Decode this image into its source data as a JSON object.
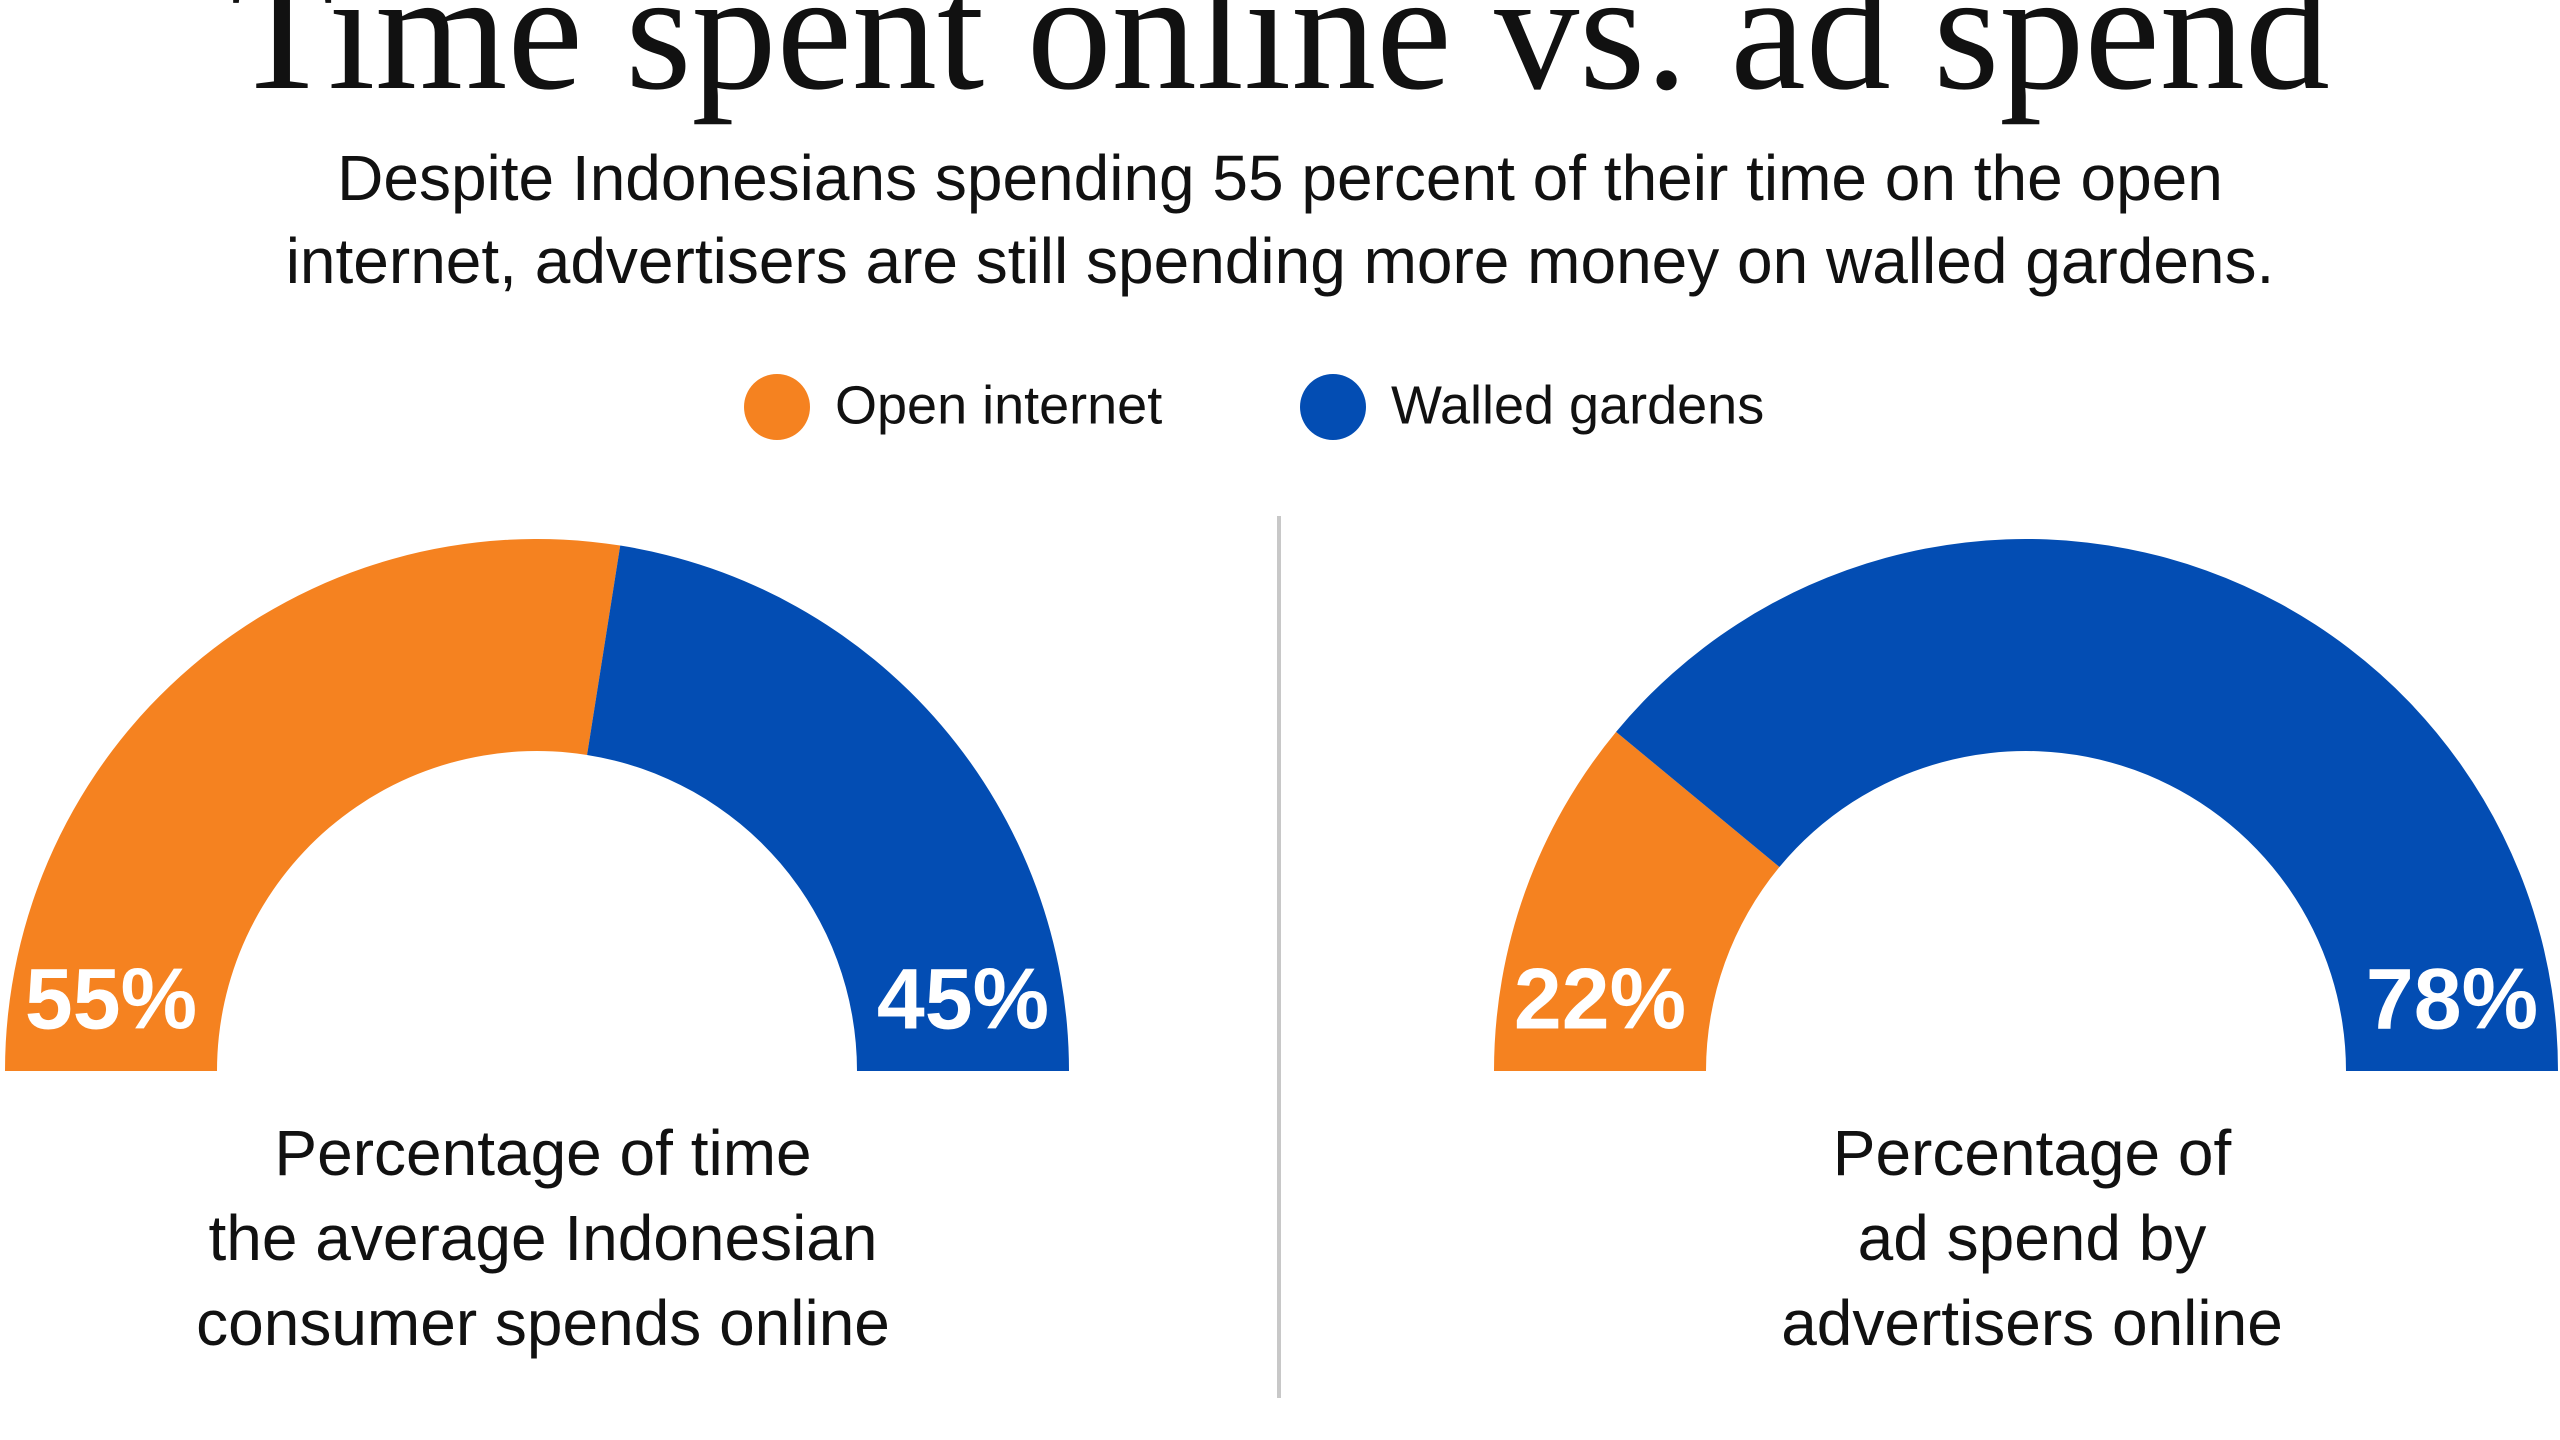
{
  "header": {
    "title": "Time spent online vs. ad spend",
    "subtitle": [
      "Despite Indonesians spending 55 percent of their time on the open",
      "internet, advertisers are still spending more money on walled gardens."
    ]
  },
  "chart_data": [
    {
      "type": "half-donut",
      "categories": [
        "Open internet",
        "Walled gardens"
      ],
      "colors": [
        "#f58220",
        "#034db3"
      ],
      "values": [
        55,
        45
      ],
      "value_labels": [
        "55%",
        "45%"
      ],
      "caption": [
        "Percentage of time",
        "the average Indonesian",
        "consumer spends online"
      ]
    },
    {
      "type": "half-donut",
      "categories": [
        "Open internet",
        "Walled gardens"
      ],
      "colors": [
        "#f58220",
        "#034db3"
      ],
      "values": [
        22,
        78
      ],
      "value_labels": [
        "22%",
        "78%"
      ],
      "caption": [
        "Percentage of",
        "ad spend by",
        "advertisers online"
      ]
    }
  ]
}
